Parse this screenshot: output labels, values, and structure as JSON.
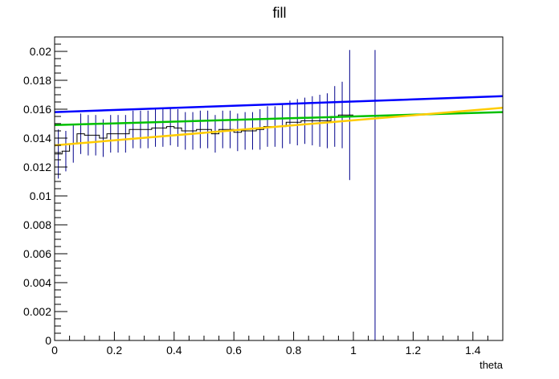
{
  "chart_data": {
    "type": "line",
    "title": "fill",
    "xlabel": "theta",
    "ylabel": "",
    "xlim": [
      0,
      1.5
    ],
    "ylim": [
      0,
      0.021
    ],
    "grid": false,
    "x_ticks": [
      "0",
      "0.2",
      "0.4",
      "0.6",
      "0.8",
      "1",
      "1.2",
      "1.4"
    ],
    "x_tick_values": [
      0,
      0.2,
      0.4,
      0.6,
      0.8,
      1.0,
      1.2,
      1.4
    ],
    "y_ticks": [
      "0",
      "0.002",
      "0.004",
      "0.006",
      "0.008",
      "0.01",
      "0.012",
      "0.014",
      "0.016",
      "0.018",
      "0.02"
    ],
    "y_tick_values": [
      0,
      0.002,
      0.004,
      0.006,
      0.008,
      0.01,
      0.012,
      0.014,
      0.016,
      0.018,
      0.02
    ],
    "histogram": {
      "bin_width": 0.025,
      "bin_edges_start": 0,
      "values": [
        0.0129,
        0.0131,
        0.0136,
        0.0143,
        0.0142,
        0.0142,
        0.014,
        0.0143,
        0.0143,
        0.0143,
        0.0146,
        0.0146,
        0.0146,
        0.0147,
        0.0147,
        0.0148,
        0.0147,
        0.0145,
        0.0145,
        0.0146,
        0.0146,
        0.0143,
        0.0146,
        0.0146,
        0.0144,
        0.0145,
        0.0145,
        0.0146,
        0.0148,
        0.0148,
        0.0148,
        0.0151,
        0.0151,
        0.0152,
        0.0152,
        0.0152,
        0.0152,
        0.0155,
        0.0156,
        0.0156
      ],
      "errors": [
        0.0017,
        0.0014,
        0.0013,
        0.0014,
        0.0014,
        0.0014,
        0.0013,
        0.0013,
        0.0013,
        0.0013,
        0.0013,
        0.0013,
        0.0013,
        0.0013,
        0.0013,
        0.0013,
        0.0013,
        0.0013,
        0.0013,
        0.0013,
        0.0013,
        0.0013,
        0.0013,
        0.0013,
        0.0013,
        0.0013,
        0.0013,
        0.0014,
        0.0014,
        0.0014,
        0.0015,
        0.0015,
        0.0016,
        0.0016,
        0.0017,
        0.0018,
        0.0019,
        0.0021,
        0.0023,
        0.0045
      ],
      "line_color": "#000000",
      "error_color": "#00008b"
    },
    "last_bin": {
      "x": 1.0725,
      "y": 0.0155,
      "error_low": 0.0155,
      "error_high": 0.0046
    },
    "series": [
      {
        "color": "#0000ff",
        "x": [
          0,
          1.5
        ],
        "values": [
          0.0158,
          0.0169
        ]
      },
      {
        "color": "#00c000",
        "x": [
          0,
          1.5
        ],
        "values": [
          0.0149,
          0.0158
        ]
      },
      {
        "color": "#ffcc00",
        "x": [
          0,
          1.5
        ],
        "values": [
          0.0135,
          0.0161
        ]
      }
    ]
  }
}
